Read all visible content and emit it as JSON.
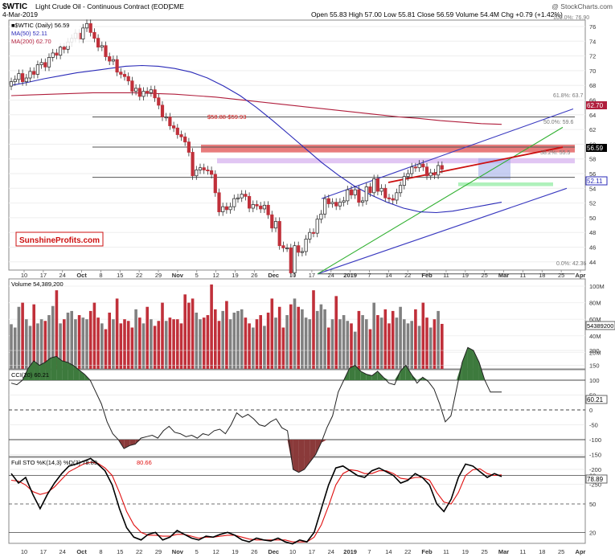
{
  "header": {
    "symbol": "$WTIC",
    "description": "Light Crude Oil - Continuous Contract (EOD)",
    "exchange": "CME",
    "date": "4-Mar-2019",
    "ohlc": "Open 55.83  High 57.00  Low 55.81  Close 56.59  Volume 54.4M  Chg +0.79 (+1.42%)",
    "watermark": "@ StockCharts.com"
  },
  "legend": {
    "price": "■$WTIC (Daily) 56.59",
    "ma50": "MA(50) 52.11",
    "ma200": "MA(200) 62.70",
    "volume": "Volume 54,389,200",
    "cci": "CCI(20) 60.21",
    "sto_prefix": "Full STO %K(14,3) %D(3) 78.89,",
    "sto_d": "80.66"
  },
  "colors": {
    "up": "#808080",
    "down": "#c0303a",
    "ma50": "#2a2ab8",
    "ma200": "#b01e3c",
    "resistance_zone": "#e05050",
    "lavender_zone": "#d9b8f0",
    "support_zone": "#a6f0b4",
    "channel": "#3a3ac0",
    "green_line": "#30b030",
    "red_line": "#cc1010",
    "cci_pos": "#3d7a3d",
    "cci_neg": "#8a3a3a",
    "pk": "#000000",
    "pd": "#e01010"
  },
  "price_panel": {
    "y_ticks": [
      "76",
      "74",
      "72",
      "70",
      "68",
      "66",
      "64",
      "62",
      "60",
      "58",
      "56",
      "54",
      "52",
      "50",
      "48",
      "46",
      "44"
    ],
    "tag_ma200": "62.70",
    "tag_last": "56.59",
    "tag_ma50": "52.11",
    "zone_label": "$58.88-$59.93",
    "fib": [
      "100.0%: 76.90",
      "61.8%: 63.7",
      "50.0%: 59.6",
      "38.2%: 55.5",
      "0.0%: 42.36"
    ],
    "brand": "SunshineProfits.com"
  },
  "volume_panel": {
    "y_ticks": [
      "100M",
      "80M",
      "60M",
      "40M",
      "20M"
    ],
    "tag": "54389200"
  },
  "cci_panel": {
    "y_ticks": [
      "200",
      "150",
      "100",
      "50",
      "0",
      "-50",
      "-100",
      "-150",
      "-200",
      "-250"
    ],
    "tag": "60.21"
  },
  "sto_panel": {
    "y_ticks": [
      "80",
      "50",
      "20"
    ],
    "tag": "78.89"
  },
  "x_axis": [
    "10",
    "17",
    "24",
    "Oct",
    "8",
    "15",
    "22",
    "29",
    "Nov",
    "5",
    "12",
    "19",
    "26",
    "Dec",
    "10",
    "17",
    "24",
    "2019",
    "7",
    "14",
    "22",
    "Feb",
    "11",
    "19",
    "25",
    "Mar",
    "11",
    "18",
    "25",
    "Apr"
  ],
  "chart_data": {
    "type": "candlestick",
    "instrument": "$WTIC Light Crude Oil - Continuous Contract (EOD)",
    "last": {
      "open": 55.83,
      "high": 57.0,
      "low": 55.81,
      "close": 56.59,
      "volume": 54389200,
      "change": "+0.79 (+1.42%)"
    },
    "closes": [
      68.5,
      68.8,
      69.6,
      68.5,
      69.0,
      69.9,
      69.5,
      70.8,
      71.1,
      70.5,
      71.8,
      72.4,
      72.1,
      73.2,
      72.9,
      73.9,
      74.4,
      75.1,
      74.3,
      75.8,
      76.4,
      75.2,
      74.4,
      73.2,
      73.4,
      71.9,
      71.3,
      71.5,
      69.8,
      69.5,
      69.2,
      68.6,
      67.2,
      67.6,
      66.5,
      67.2,
      67.0,
      67.4,
      66.3,
      65.3,
      63.7,
      63.7,
      62.5,
      62.2,
      61.3,
      61.0,
      60.3,
      58.9,
      55.7,
      56.5,
      56.8,
      56.5,
      56.4,
      55.9,
      53.4,
      50.8,
      51.5,
      51.1,
      51.5,
      52.6,
      52.7,
      53.2,
      52.9,
      51.3,
      51.8,
      51.6,
      51.2,
      51.7,
      50.4,
      48.6,
      49.5,
      46.2,
      45.9,
      45.9,
      42.5,
      46.2,
      45.3,
      45.4,
      47.1,
      48.0,
      47.9,
      49.8,
      50.5,
      52.6,
      51.9,
      52.1,
      51.6,
      52.1,
      52.3,
      53.8,
      53.1,
      53.8,
      52.1,
      52.3,
      54.2,
      53.4,
      55.3,
      53.6,
      54.0,
      52.7,
      52.6,
      52.4,
      53.4,
      54.4,
      55.6,
      56.0,
      56.9,
      56.8,
      57.3,
      56.9,
      55.7,
      56.1,
      55.8,
      57.1,
      56.6
    ],
    "ma50": [
      68.0,
      68.4,
      68.9,
      69.3,
      69.7,
      70.0,
      70.3,
      70.6,
      70.7,
      70.6,
      70.3,
      69.8,
      69.0,
      67.9,
      66.6,
      65.0,
      63.2,
      61.3,
      59.4,
      57.5,
      55.8,
      54.3,
      53.1,
      52.1,
      51.3,
      50.8,
      50.7,
      50.9,
      51.3,
      51.7,
      52.11
    ],
    "ma200": [
      66.6,
      66.7,
      66.8,
      66.9,
      67.0,
      67.0,
      67.0,
      66.9,
      66.8,
      66.6,
      66.4,
      66.1,
      65.8,
      65.5,
      65.2,
      64.9,
      64.6,
      64.3,
      64.0,
      63.7,
      63.5,
      63.2,
      63.0,
      62.8,
      62.7
    ],
    "volume_millions": [
      54,
      50,
      75,
      80,
      60,
      52,
      78,
      55,
      60,
      58,
      65,
      76,
      95,
      55,
      60,
      68,
      70,
      60,
      65,
      62,
      60,
      70,
      80,
      62,
      55,
      48,
      68,
      60,
      85,
      55,
      60,
      58,
      50,
      72,
      62,
      55,
      75,
      60,
      52,
      58,
      80,
      58,
      62,
      60,
      60,
      55,
      90,
      80,
      85,
      68,
      60,
      62,
      65,
      102,
      72,
      58,
      70,
      82,
      60,
      68,
      70,
      72,
      62,
      55,
      50,
      60,
      65,
      52,
      68,
      85,
      62,
      75,
      50,
      65,
      78,
      85,
      75,
      72,
      62,
      60,
      95,
      70,
      78,
      72,
      50,
      60,
      88,
      60,
      65,
      58,
      55,
      45,
      70,
      65,
      60,
      48,
      80,
      65,
      62,
      72,
      55,
      70,
      62,
      75,
      60,
      55,
      58,
      72,
      52,
      80,
      62,
      50,
      60,
      70,
      54.4
    ],
    "cci": [
      90,
      85,
      100,
      140,
      165,
      150,
      160,
      175,
      180,
      165,
      160,
      150,
      135,
      120,
      100,
      60,
      20,
      -40,
      -80,
      -100,
      -130,
      -120,
      -115,
      -95,
      -90,
      -85,
      -95,
      -70,
      -55,
      -75,
      -80,
      -90,
      -85,
      -95,
      -80,
      -85,
      -70,
      -65,
      -80,
      -50,
      -10,
      -25,
      -15,
      -30,
      -50,
      -55,
      -40,
      -30,
      -60,
      -70,
      -200,
      -210,
      -200,
      -175,
      -150,
      -110,
      -60,
      -20,
      60,
      100,
      140,
      150,
      130,
      120,
      115,
      130,
      110,
      90,
      85,
      130,
      150,
      120,
      90,
      110,
      95,
      70,
      20,
      -40,
      -20,
      70,
      160,
      210,
      200,
      160,
      100,
      60,
      60,
      60.21
    ],
    "stoch_k": [
      82,
      72,
      78,
      60,
      45,
      60,
      72,
      82,
      90,
      92,
      95,
      98,
      92,
      85,
      70,
      45,
      25,
      15,
      12,
      18,
      20,
      12,
      15,
      22,
      18,
      14,
      12,
      16,
      15,
      18,
      20,
      17,
      12,
      10,
      14,
      12,
      11,
      14,
      10,
      8,
      12,
      10,
      20,
      45,
      70,
      88,
      90,
      85,
      80,
      78,
      85,
      88,
      84,
      80,
      72,
      75,
      82,
      78,
      70,
      50,
      42,
      55,
      78,
      92,
      90,
      84,
      78,
      82,
      78.89
    ],
    "stoch_d": [
      75,
      74,
      70,
      63,
      60,
      62,
      68,
      76,
      84,
      88,
      92,
      94,
      93,
      88,
      80,
      62,
      42,
      28,
      20,
      17,
      17,
      16,
      16,
      18,
      18,
      16,
      14,
      15,
      15,
      16,
      17,
      17,
      15,
      13,
      12,
      12,
      12,
      12,
      12,
      10,
      10,
      10,
      15,
      28,
      48,
      70,
      82,
      86,
      85,
      82,
      82,
      85,
      85,
      82,
      77,
      76,
      78,
      78,
      75,
      62,
      52,
      50,
      62,
      80,
      86,
      87,
      82,
      80,
      80.66
    ],
    "levels": {
      "ma200": 62.7,
      "ma50": 52.11,
      "fib_61_8": 63.7,
      "fib_50": 59.6,
      "fib_38_2": 55.5,
      "fib_0": 42.36,
      "fib_100": 76.9
    },
    "zones": {
      "resistance": [
        58.88,
        59.93
      ],
      "lavender": [
        57.4,
        58.1
      ],
      "support": [
        54.3,
        54.8
      ]
    }
  }
}
